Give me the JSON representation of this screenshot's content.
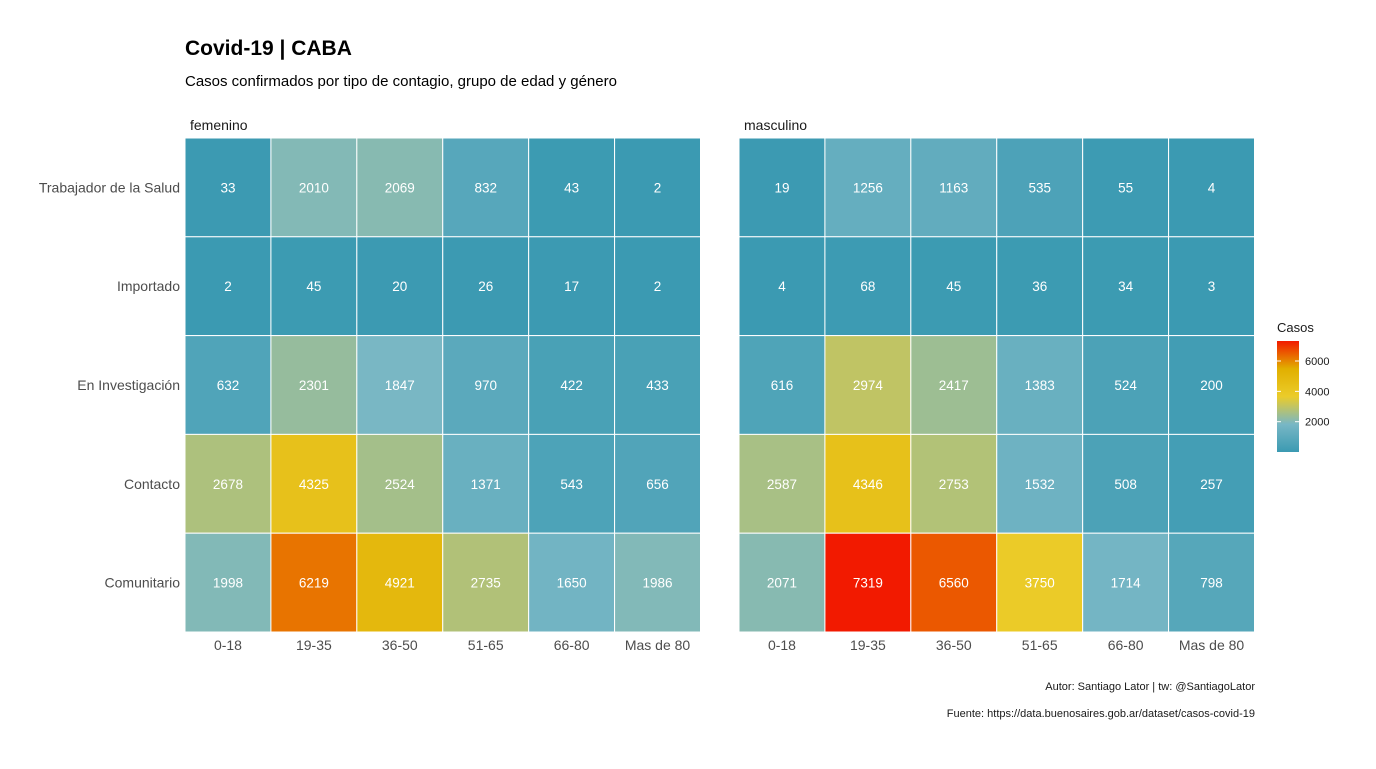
{
  "chart_data": {
    "type": "heatmap",
    "title": "Covid-19 | CABA",
    "subtitle": "Casos confirmados por tipo de contagio, grupo de edad y género",
    "facets": [
      "femenino",
      "masculino"
    ],
    "rows": [
      "Trabajador de la Salud",
      "Importado",
      "En Investigación",
      "Contacto",
      "Comunitario"
    ],
    "columns": [
      "0-18",
      "19-35",
      "36-50",
      "51-65",
      "66-80",
      "Mas de 80"
    ],
    "values": {
      "femenino": [
        [
          33,
          2010,
          2069,
          832,
          43,
          2
        ],
        [
          2,
          45,
          20,
          26,
          17,
          2
        ],
        [
          632,
          2301,
          1847,
          970,
          422,
          433
        ],
        [
          2678,
          4325,
          2524,
          1371,
          543,
          656
        ],
        [
          1998,
          6219,
          4921,
          2735,
          1650,
          1986
        ]
      ],
      "masculino": [
        [
          19,
          1256,
          1163,
          535,
          55,
          4
        ],
        [
          4,
          68,
          45,
          36,
          34,
          3
        ],
        [
          616,
          2974,
          2417,
          1383,
          524,
          200
        ],
        [
          2587,
          4346,
          2753,
          1532,
          508,
          257
        ],
        [
          2071,
          7319,
          6560,
          3750,
          1714,
          798
        ]
      ]
    },
    "legend": {
      "title": "Casos",
      "ticks": [
        2000,
        4000,
        6000
      ],
      "range": [
        2,
        7319
      ],
      "placement": "right"
    },
    "colors": {
      "scale": [
        "#3B9AB2",
        "#78B7C5",
        "#EBCC2A",
        "#E1AF00",
        "#F21A00"
      ],
      "grid": "#ffffff"
    },
    "caption": [
      "Autor: Santiago Lator | tw: @SantiagoLator",
      "Fuente: https://data.buenosaires.gob.ar/dataset/casos-covid-19"
    ]
  }
}
